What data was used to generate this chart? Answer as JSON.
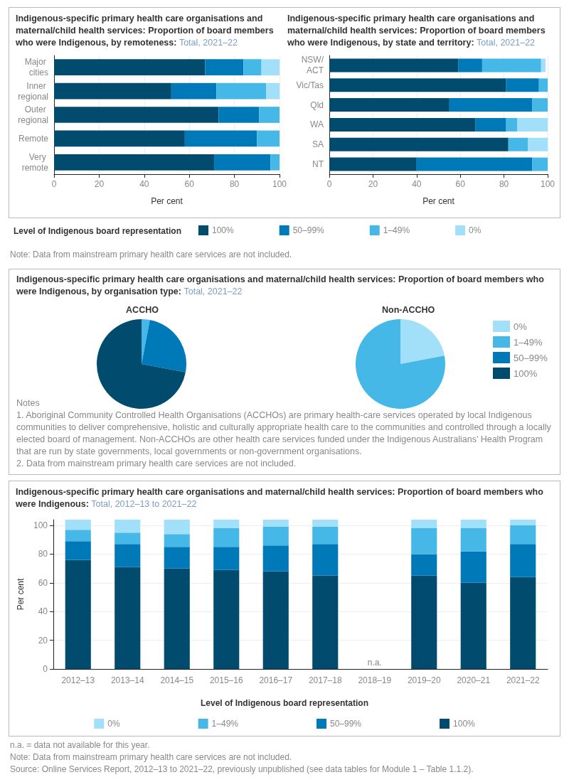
{
  "chart_data": [
    {
      "type": "bar",
      "orientation": "horizontal",
      "stacked": true,
      "title": "Indigenous-specific primary health care organisations and maternal/child health services: Proportion of board members who were Indigenous, by remoteness:",
      "subtitle": "Total, 2021–22",
      "categories": [
        "Major cities",
        "Inner regional",
        "Outer regional",
        "Remote",
        "Very remote"
      ],
      "xlabel": "Per cent",
      "xlim": [
        0,
        100
      ],
      "xticks": [
        0,
        20,
        40,
        60,
        80,
        100
      ],
      "grid": "x",
      "legend": "bottom",
      "legend_title": "Level of Indigenous board representation",
      "annotations": [
        "Note: Data from mainstream primary health care services are not included."
      ],
      "series": [
        {
          "name": "100%",
          "color": "#004b6e",
          "values": [
            67,
            52,
            73,
            58,
            71
          ]
        },
        {
          "name": "50–99%",
          "color": "#0079b8",
          "values": [
            17,
            20,
            18,
            32,
            25
          ]
        },
        {
          "name": "1–49%",
          "color": "#46b8e8",
          "values": [
            8,
            22,
            9,
            10,
            4
          ]
        },
        {
          "name": "0%",
          "color": "#a2dff9",
          "values": [
            8,
            6,
            0,
            0,
            0
          ]
        }
      ]
    },
    {
      "type": "bar",
      "orientation": "horizontal",
      "stacked": true,
      "title": "Indigenous-specific primary health care organisations and maternal/child health services: Proportion of board members who were Indigenous, by state and territory:",
      "subtitle": "Total, 2021–22",
      "categories": [
        "NSW/ACT",
        "Vic/Tas",
        "Qld",
        "WA",
        "SA",
        "NT"
      ],
      "xlabel": "Per cent",
      "xlim": [
        0,
        100
      ],
      "xticks": [
        0,
        20,
        40,
        60,
        80,
        100
      ],
      "grid": "x",
      "series": [
        {
          "color": "#004b6e",
          "values": [
            59,
            81,
            55,
            67,
            82,
            40
          ]
        },
        {
          "color": "#0079b8",
          "values": [
            11,
            15,
            38,
            14,
            0,
            53
          ]
        },
        {
          "color": "#46b8e8",
          "values": [
            27,
            4,
            7,
            5,
            9,
            7
          ]
        },
        {
          "color": "#a2dff9",
          "values": [
            2,
            0,
            0,
            14,
            9,
            0
          ]
        }
      ]
    },
    {
      "type": "other",
      "title": "Indigenous-specific primary health care organisations and maternal/child health services: Proportion of board members who were Indigenous, by organisation type:",
      "subtitle": "Total, 2021–22",
      "annotations": [
        "Notes",
        "1. Aboriginal Community Controlled Health Organisations (ACCHOs) are primary health-care services operated by local Indigenous communities to deliver comprehensive, holistic and culturally appropriate health care to the communities and controlled through a locally elected board of management. Non-ACCHOs are other health care services funded under the Indigenous Australians’ Health Program that are run by state governments, local governments or non-government organisations.",
        "2. Data from mainstream primary health care services are not included."
      ]
    },
    {
      "type": "pie",
      "title": "ACCHO",
      "categories": [
        null,
        null,
        null,
        null
      ],
      "values": [
        0,
        3,
        25,
        72
      ],
      "colors": [
        "#a2dff9",
        "#46b8e8",
        "#0079b8",
        "#004b6e"
      ]
    },
    {
      "type": "pie",
      "title": "Non-ACCHO",
      "categories": [
        "0%",
        "1–49%",
        "50–99%",
        "100%"
      ],
      "values": [
        22,
        78,
        0,
        0
      ],
      "colors": [
        "#a2dff9",
        "#46b8e8",
        "#0079b8",
        "#004b6e"
      ],
      "legend": "right"
    },
    {
      "type": "bar",
      "stacked": true,
      "title": "Indigenous-specific primary health care organisations and maternal/child health services: Proportion of board members who were Indigenous:",
      "subtitle": "Total, 2012–13 to 2021–22",
      "categories": [
        "2012–13",
        "2013–14",
        "2014–15",
        "2015–16",
        "2016–17",
        "2017–18",
        "2018–19",
        "2019–20",
        "2020–21",
        "2021–22"
      ],
      "ylabel": "Per cent",
      "ylim": [
        0,
        104
      ],
      "yticks": [
        0,
        20,
        40,
        60,
        80,
        100
      ],
      "grid": "y",
      "legend": "bottom",
      "legend_title": "Level of Indigenous board representation",
      "annotations": [
        "n.a.",
        "n.a. = data not available for this year.",
        "Note: Data from mainstream primary health care services are not included.",
        "Source: Online Services Report, 2012–13 to 2021–22, previously unpublished (see data tables for Module 1 – Table 1.1.2)."
      ],
      "series": [
        {
          "name": "100%",
          "color": "#004b6e",
          "values": [
            76,
            71,
            70,
            69,
            68,
            65,
            null,
            65,
            60,
            64
          ]
        },
        {
          "name": "50–99%",
          "color": "#0079b8",
          "values": [
            13,
            16,
            15,
            16,
            18,
            22,
            null,
            15,
            22,
            23
          ]
        },
        {
          "name": "1–49%",
          "color": "#46b8e8",
          "values": [
            8,
            8,
            9,
            13,
            13,
            12,
            null,
            18,
            16,
            13
          ]
        },
        {
          "name": "0%",
          "color": "#a2dff9",
          "values": [
            7,
            9,
            10,
            6,
            5,
            5,
            null,
            6,
            6,
            4
          ]
        }
      ]
    }
  ]
}
